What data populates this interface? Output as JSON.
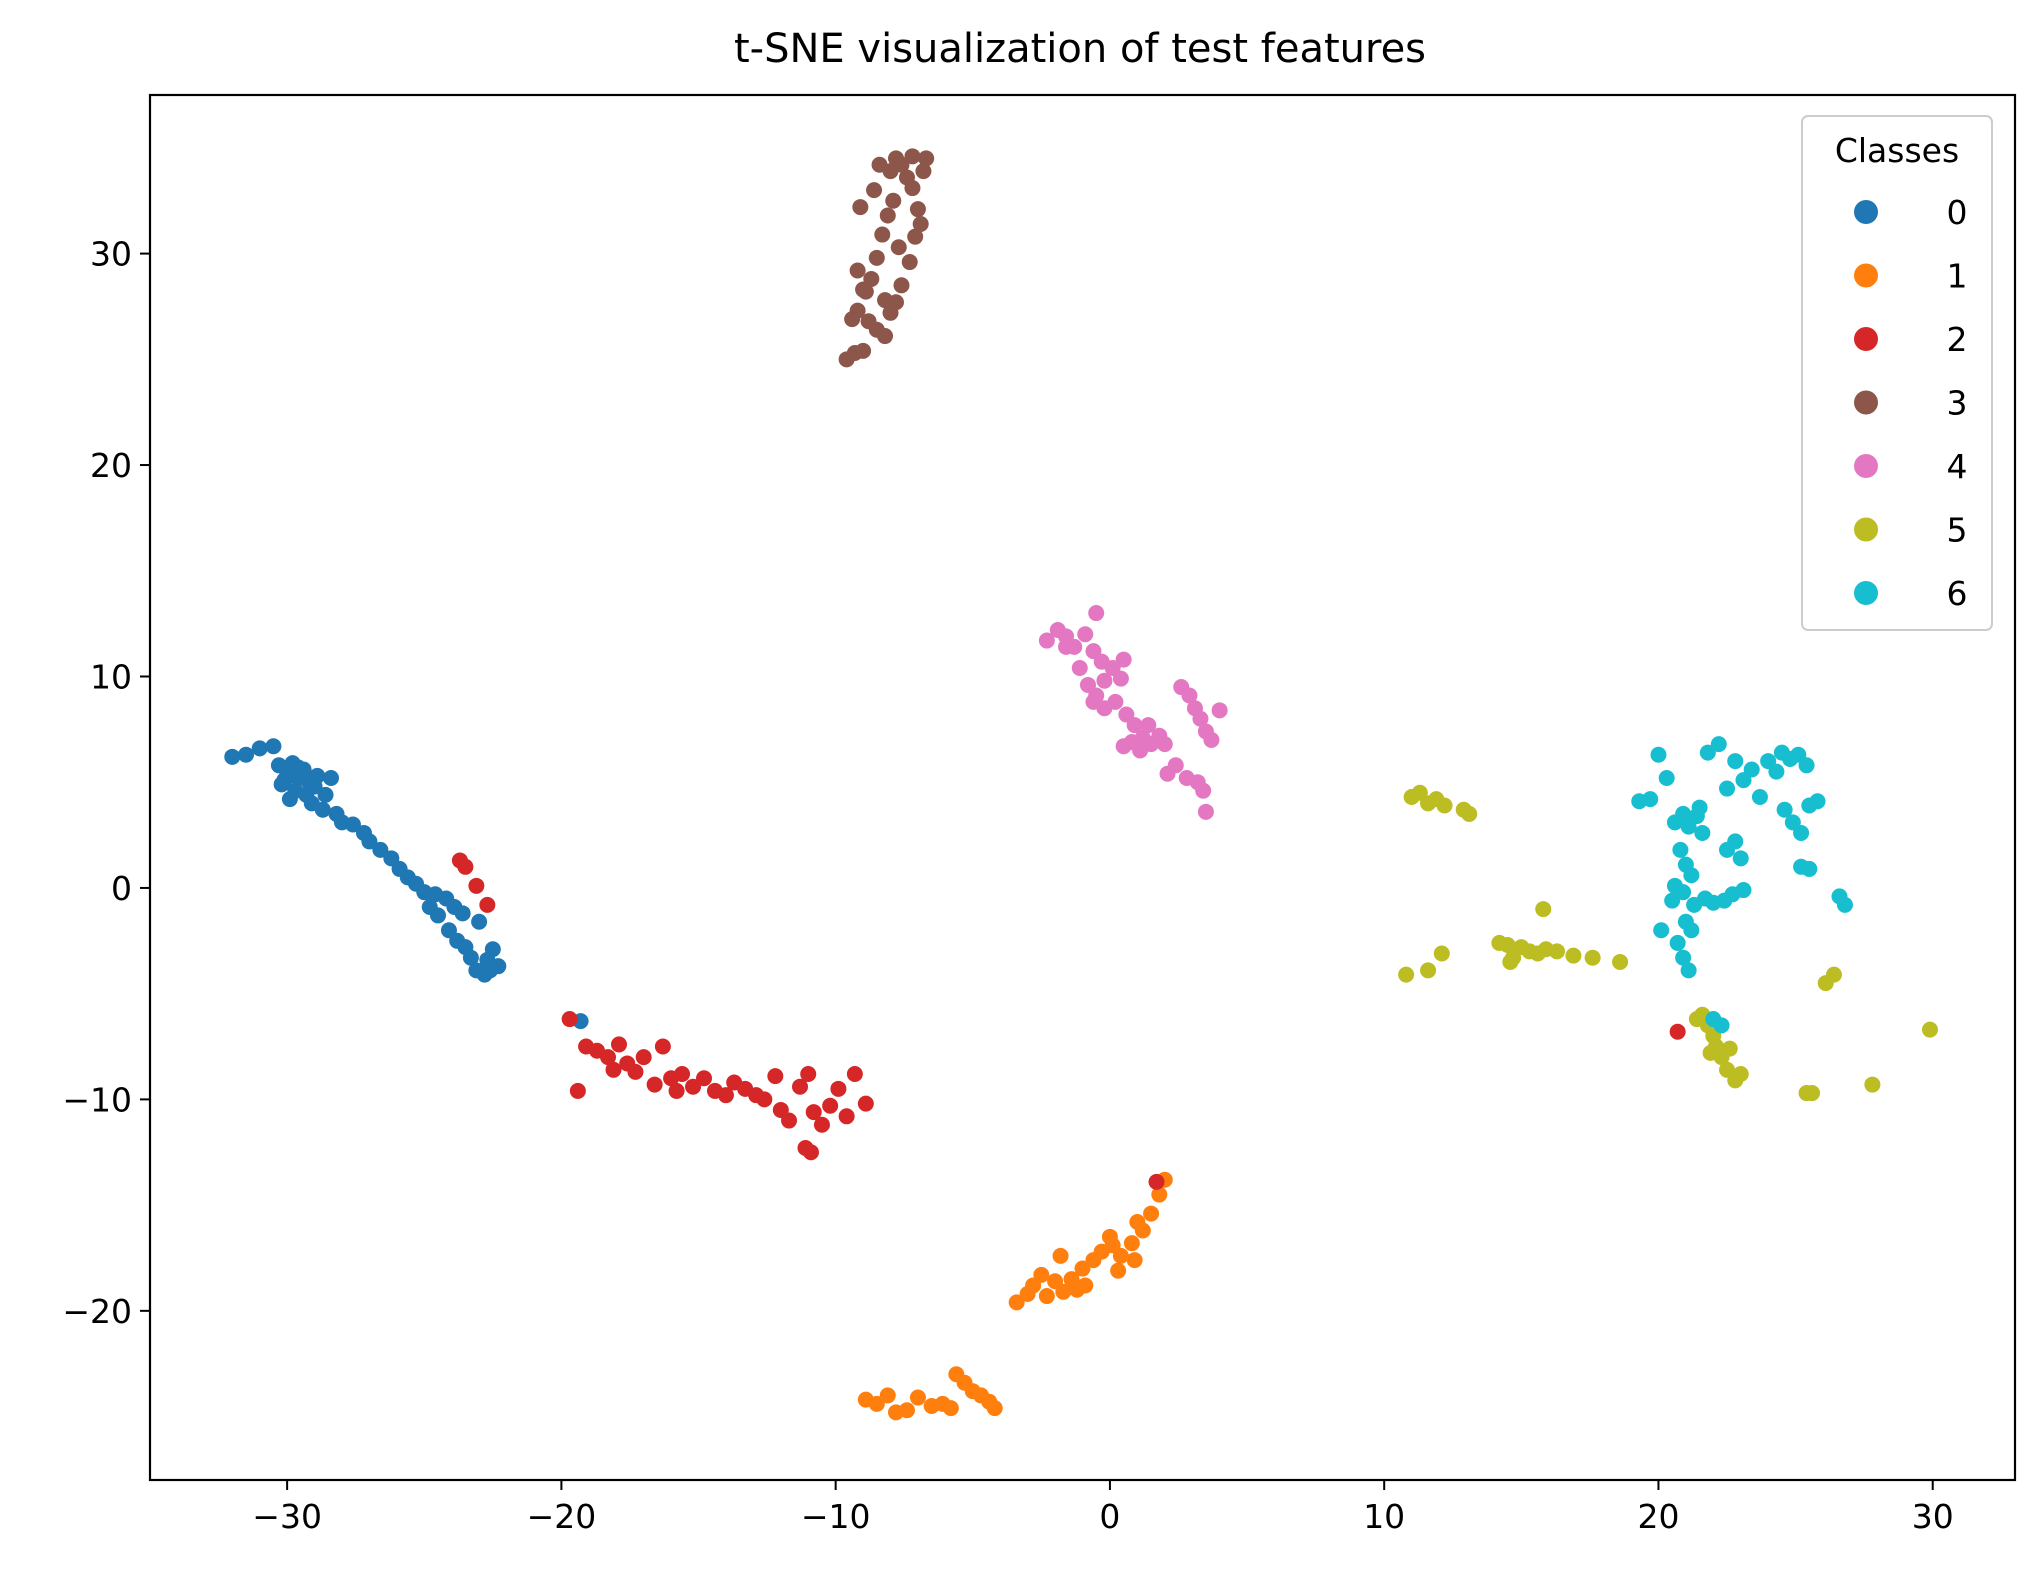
{
  "chart_data": {
    "type": "scatter",
    "title": "t-SNE visualization of test features",
    "xlabel": "",
    "ylabel": "",
    "xlim": [
      -35,
      33
    ],
    "ylim": [
      -28,
      37.5
    ],
    "xticks": [
      -30,
      -20,
      -10,
      0,
      10,
      20,
      30
    ],
    "yticks": [
      -20,
      -10,
      0,
      10,
      20,
      30
    ],
    "xtick_labels": [
      "−30",
      "−20",
      "−10",
      "0",
      "10",
      "20",
      "30"
    ],
    "ytick_labels": [
      "−20",
      "−10",
      "0",
      "10",
      "20",
      "30"
    ],
    "grid": false,
    "legend": {
      "title": "Classes",
      "placement": "top-right",
      "entries": [
        "0",
        "1",
        "2",
        "3",
        "4",
        "5",
        "6"
      ]
    },
    "series": [
      {
        "name": "0",
        "color": "#1f77b4",
        "points": [
          [
            -32,
            6.2
          ],
          [
            -31.5,
            6.3
          ],
          [
            -31,
            6.6
          ],
          [
            -30.5,
            6.7
          ],
          [
            -30.3,
            5.8
          ],
          [
            -30,
            5.5
          ],
          [
            -29.8,
            5.9
          ],
          [
            -29.6,
            5.2
          ],
          [
            -29.4,
            5.6
          ],
          [
            -29.2,
            5.0
          ],
          [
            -29.0,
            4.8
          ],
          [
            -30.1,
            5.1
          ],
          [
            -29.7,
            4.6
          ],
          [
            -29.3,
            4.4
          ],
          [
            -28.9,
            5.3
          ],
          [
            -28.6,
            4.4
          ],
          [
            -28.4,
            5.2
          ],
          [
            -29.1,
            4.0
          ],
          [
            -28.7,
            3.7
          ],
          [
            -28.2,
            3.5
          ],
          [
            -28.0,
            3.1
          ],
          [
            -27.6,
            3.0
          ],
          [
            -27.2,
            2.6
          ],
          [
            -27.0,
            2.2
          ],
          [
            -26.6,
            1.8
          ],
          [
            -26.2,
            1.4
          ],
          [
            -25.9,
            0.9
          ],
          [
            -25.6,
            0.5
          ],
          [
            -25.3,
            0.2
          ],
          [
            -25.0,
            -0.2
          ],
          [
            -24.6,
            -0.3
          ],
          [
            -24.2,
            -0.5
          ],
          [
            -24.8,
            -0.9
          ],
          [
            -24.5,
            -1.3
          ],
          [
            -23.9,
            -0.9
          ],
          [
            -23.6,
            -1.2
          ],
          [
            -24.1,
            -2.0
          ],
          [
            -23.8,
            -2.5
          ],
          [
            -23.5,
            -2.8
          ],
          [
            -23.3,
            -3.3
          ],
          [
            -23.0,
            -1.6
          ],
          [
            -22.7,
            -3.4
          ],
          [
            -22.6,
            -3.9
          ],
          [
            -22.3,
            -3.7
          ],
          [
            -22.8,
            -4.1
          ],
          [
            -23.1,
            -3.9
          ],
          [
            -22.5,
            -2.9
          ],
          [
            -29.6,
            5.7
          ],
          [
            -29.9,
            4.2
          ],
          [
            -30.2,
            4.9
          ],
          [
            -19.3,
            -6.3
          ]
        ]
      },
      {
        "name": "1",
        "color": "#ff7f0e",
        "points": [
          [
            -3.4,
            -19.6
          ],
          [
            -3.0,
            -19.2
          ],
          [
            -2.8,
            -18.8
          ],
          [
            -2.5,
            -18.3
          ],
          [
            -2.0,
            -18.6
          ],
          [
            -1.7,
            -19.1
          ],
          [
            -1.4,
            -18.5
          ],
          [
            -1.0,
            -18.0
          ],
          [
            -0.6,
            -17.6
          ],
          [
            -0.3,
            -17.2
          ],
          [
            0.1,
            -16.9
          ],
          [
            0.4,
            -17.4
          ],
          [
            0.8,
            -16.8
          ],
          [
            1.2,
            -16.2
          ],
          [
            1.5,
            -15.4
          ],
          [
            1.8,
            -14.5
          ],
          [
            2.0,
            -13.8
          ],
          [
            -1.8,
            -17.4
          ],
          [
            -0.9,
            -18.8
          ],
          [
            0.3,
            -18.1
          ],
          [
            0.9,
            -17.6
          ],
          [
            -2.3,
            -19.3
          ],
          [
            -1.2,
            -19.0
          ],
          [
            0.0,
            -16.5
          ],
          [
            1.0,
            -15.8
          ],
          [
            -8.9,
            -24.2
          ],
          [
            -8.5,
            -24.4
          ],
          [
            -8.1,
            -24.0
          ],
          [
            -7.8,
            -24.8
          ],
          [
            -7.4,
            -24.7
          ],
          [
            -7.0,
            -24.1
          ],
          [
            -6.5,
            -24.5
          ],
          [
            -6.1,
            -24.4
          ],
          [
            -5.6,
            -23.0
          ],
          [
            -5.3,
            -23.4
          ],
          [
            -5.0,
            -23.8
          ],
          [
            -4.7,
            -24.0
          ],
          [
            -4.4,
            -24.3
          ],
          [
            -4.2,
            -24.6
          ],
          [
            -5.8,
            -24.6
          ]
        ]
      },
      {
        "name": "2",
        "color": "#d62728",
        "points": [
          [
            -19.7,
            -6.2
          ],
          [
            -19.4,
            -9.6
          ],
          [
            -19.1,
            -7.5
          ],
          [
            -18.7,
            -7.7
          ],
          [
            -18.3,
            -8.0
          ],
          [
            -17.9,
            -7.4
          ],
          [
            -17.6,
            -8.3
          ],
          [
            -17.3,
            -8.7
          ],
          [
            -17.0,
            -8.0
          ],
          [
            -16.6,
            -9.3
          ],
          [
            -16.3,
            -7.5
          ],
          [
            -16.0,
            -9.0
          ],
          [
            -15.6,
            -8.8
          ],
          [
            -15.2,
            -9.4
          ],
          [
            -14.8,
            -9.0
          ],
          [
            -14.4,
            -9.6
          ],
          [
            -14.0,
            -9.8
          ],
          [
            -13.7,
            -9.2
          ],
          [
            -13.3,
            -9.5
          ],
          [
            -12.9,
            -9.8
          ],
          [
            -12.6,
            -10.0
          ],
          [
            -12.2,
            -8.9
          ],
          [
            -12.0,
            -10.5
          ],
          [
            -11.7,
            -11.0
          ],
          [
            -11.3,
            -9.4
          ],
          [
            -11.0,
            -8.8
          ],
          [
            -10.8,
            -10.6
          ],
          [
            -10.5,
            -11.2
          ],
          [
            -10.2,
            -10.3
          ],
          [
            -9.9,
            -9.5
          ],
          [
            -9.6,
            -10.8
          ],
          [
            -9.3,
            -8.8
          ],
          [
            -8.9,
            -10.2
          ],
          [
            -11.1,
            -12.3
          ],
          [
            -10.9,
            -12.5
          ],
          [
            -18.1,
            -8.6
          ],
          [
            -15.8,
            -9.6
          ],
          [
            -23.7,
            1.3
          ],
          [
            -23.5,
            1.0
          ],
          [
            -23.1,
            0.1
          ],
          [
            -22.7,
            -0.8
          ],
          [
            20.7,
            -6.8
          ],
          [
            1.7,
            -13.9
          ]
        ]
      },
      {
        "name": "3",
        "color": "#8c564b",
        "points": [
          [
            -9.6,
            25.0
          ],
          [
            -9.3,
            25.3
          ],
          [
            -9.0,
            25.4
          ],
          [
            -8.8,
            26.8
          ],
          [
            -8.5,
            26.4
          ],
          [
            -8.2,
            26.1
          ],
          [
            -8.0,
            27.2
          ],
          [
            -7.8,
            27.7
          ],
          [
            -7.6,
            28.5
          ],
          [
            -7.3,
            29.6
          ],
          [
            -7.1,
            30.8
          ],
          [
            -6.9,
            31.4
          ],
          [
            -7.0,
            32.1
          ],
          [
            -7.2,
            33.1
          ],
          [
            -7.4,
            33.6
          ],
          [
            -7.6,
            34.2
          ],
          [
            -7.8,
            34.5
          ],
          [
            -8.0,
            33.9
          ],
          [
            -7.9,
            32.5
          ],
          [
            -8.1,
            31.8
          ],
          [
            -8.3,
            30.9
          ],
          [
            -8.5,
            29.8
          ],
          [
            -8.7,
            28.8
          ],
          [
            -8.9,
            28.2
          ],
          [
            -9.2,
            27.3
          ],
          [
            -9.4,
            26.9
          ],
          [
            -9.2,
            29.2
          ],
          [
            -9.0,
            28.3
          ],
          [
            -8.6,
            33.0
          ],
          [
            -9.1,
            32.2
          ],
          [
            -6.8,
            33.9
          ],
          [
            -6.7,
            34.5
          ],
          [
            -7.2,
            34.6
          ],
          [
            -8.4,
            34.2
          ],
          [
            -7.7,
            30.3
          ],
          [
            -8.2,
            27.8
          ]
        ]
      },
      {
        "name": "4",
        "color": "#e377c2",
        "points": [
          [
            -2.3,
            11.7
          ],
          [
            -1.9,
            12.2
          ],
          [
            -1.6,
            11.9
          ],
          [
            -1.3,
            11.4
          ],
          [
            -0.9,
            12.0
          ],
          [
            -0.6,
            11.2
          ],
          [
            -0.3,
            10.7
          ],
          [
            0.1,
            10.4
          ],
          [
            0.4,
            9.9
          ],
          [
            -1.1,
            10.4
          ],
          [
            -0.8,
            9.6
          ],
          [
            -0.5,
            9.1
          ],
          [
            -0.2,
            9.8
          ],
          [
            0.2,
            8.8
          ],
          [
            0.6,
            8.2
          ],
          [
            0.9,
            7.7
          ],
          [
            1.2,
            7.1
          ],
          [
            1.5,
            6.8
          ],
          [
            1.8,
            7.2
          ],
          [
            0.5,
            6.7
          ],
          [
            0.8,
            6.9
          ],
          [
            1.1,
            6.5
          ],
          [
            1.4,
            7.7
          ],
          [
            -0.2,
            8.5
          ],
          [
            -0.6,
            8.8
          ],
          [
            2.6,
            9.5
          ],
          [
            2.9,
            9.1
          ],
          [
            3.1,
            8.5
          ],
          [
            3.3,
            8.0
          ],
          [
            3.5,
            7.4
          ],
          [
            3.7,
            7.0
          ],
          [
            4.0,
            8.4
          ],
          [
            2.1,
            5.4
          ],
          [
            2.4,
            5.8
          ],
          [
            2.8,
            5.2
          ],
          [
            3.2,
            5.0
          ],
          [
            3.4,
            4.6
          ],
          [
            3.5,
            3.6
          ],
          [
            -0.5,
            13.0
          ],
          [
            -1.6,
            11.4
          ],
          [
            0.5,
            10.8
          ],
          [
            2.0,
            6.8
          ]
        ]
      },
      {
        "name": "5",
        "color": "#bcbd22",
        "points": [
          [
            11.0,
            4.3
          ],
          [
            11.3,
            4.5
          ],
          [
            11.6,
            4.0
          ],
          [
            11.9,
            4.2
          ],
          [
            12.2,
            3.9
          ],
          [
            12.9,
            3.7
          ],
          [
            13.1,
            3.5
          ],
          [
            10.8,
            -4.1
          ],
          [
            11.6,
            -3.9
          ],
          [
            12.1,
            -3.1
          ],
          [
            14.2,
            -2.6
          ],
          [
            14.5,
            -2.7
          ],
          [
            14.7,
            -3.3
          ],
          [
            15.0,
            -2.8
          ],
          [
            15.3,
            -3.0
          ],
          [
            15.6,
            -3.1
          ],
          [
            15.9,
            -2.9
          ],
          [
            16.3,
            -3.0
          ],
          [
            16.9,
            -3.2
          ],
          [
            17.6,
            -3.3
          ],
          [
            18.6,
            -3.5
          ],
          [
            15.8,
            -1.0
          ],
          [
            14.6,
            -3.5
          ],
          [
            21.6,
            -6.0
          ],
          [
            21.8,
            -6.5
          ],
          [
            22.0,
            -7.0
          ],
          [
            22.1,
            -7.5
          ],
          [
            22.3,
            -8.0
          ],
          [
            22.5,
            -8.6
          ],
          [
            22.8,
            -9.1
          ],
          [
            23.0,
            -8.8
          ],
          [
            21.4,
            -6.2
          ],
          [
            21.9,
            -7.8
          ],
          [
            22.6,
            -7.6
          ],
          [
            25.4,
            -9.7
          ],
          [
            25.6,
            -9.7
          ],
          [
            26.1,
            -4.5
          ],
          [
            26.4,
            -4.1
          ],
          [
            27.8,
            -9.3
          ],
          [
            29.9,
            -6.7
          ]
        ]
      },
      {
        "name": "6",
        "color": "#17becf",
        "points": [
          [
            19.3,
            4.1
          ],
          [
            19.7,
            4.2
          ],
          [
            20.0,
            6.3
          ],
          [
            20.3,
            5.2
          ],
          [
            20.6,
            3.1
          ],
          [
            20.9,
            3.5
          ],
          [
            21.1,
            2.9
          ],
          [
            21.4,
            3.4
          ],
          [
            21.6,
            2.6
          ],
          [
            20.8,
            1.8
          ],
          [
            21.0,
            1.1
          ],
          [
            20.6,
            0.1
          ],
          [
            20.9,
            -0.2
          ],
          [
            21.3,
            -0.8
          ],
          [
            21.7,
            -0.5
          ],
          [
            22.0,
            -0.7
          ],
          [
            22.4,
            -0.6
          ],
          [
            22.7,
            -0.3
          ],
          [
            23.1,
            -0.1
          ],
          [
            22.5,
            1.8
          ],
          [
            22.8,
            2.2
          ],
          [
            23.0,
            1.4
          ],
          [
            21.2,
            0.6
          ],
          [
            20.1,
            -2.0
          ],
          [
            20.7,
            -2.6
          ],
          [
            20.9,
            -3.3
          ],
          [
            21.1,
            -3.9
          ],
          [
            21.0,
            -1.6
          ],
          [
            21.2,
            -2.0
          ],
          [
            21.8,
            6.4
          ],
          [
            22.2,
            6.8
          ],
          [
            22.5,
            4.7
          ],
          [
            22.8,
            6.0
          ],
          [
            23.1,
            5.1
          ],
          [
            23.4,
            5.6
          ],
          [
            23.7,
            4.3
          ],
          [
            24.0,
            6.0
          ],
          [
            24.3,
            5.5
          ],
          [
            24.5,
            6.4
          ],
          [
            24.8,
            6.1
          ],
          [
            25.1,
            6.3
          ],
          [
            25.4,
            5.8
          ],
          [
            24.6,
            3.7
          ],
          [
            24.9,
            3.1
          ],
          [
            25.2,
            2.6
          ],
          [
            25.5,
            3.9
          ],
          [
            25.8,
            4.1
          ],
          [
            25.2,
            1.0
          ],
          [
            25.5,
            0.9
          ],
          [
            26.6,
            -0.4
          ],
          [
            26.8,
            -0.8
          ],
          [
            22.0,
            -6.2
          ],
          [
            22.3,
            -6.5
          ],
          [
            21.5,
            3.8
          ],
          [
            20.5,
            -0.6
          ]
        ]
      }
    ]
  }
}
